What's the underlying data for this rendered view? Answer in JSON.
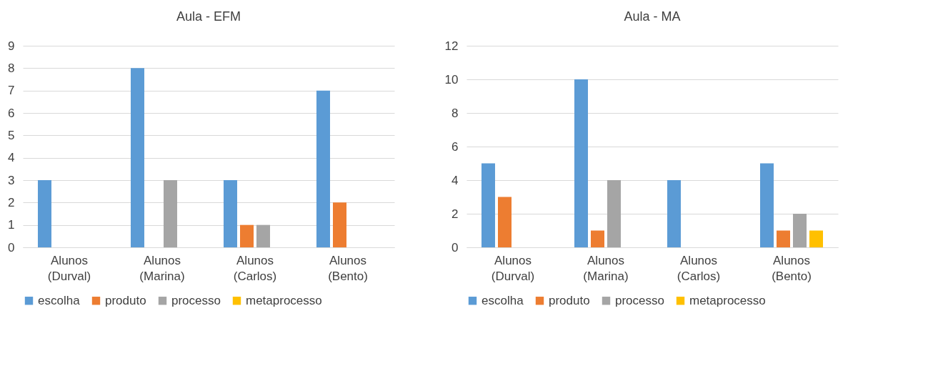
{
  "chart_data": [
    {
      "type": "bar",
      "title": "Aula - EFM",
      "categories": [
        "Alunos (Durval)",
        "Alunos (Marina)",
        "Alunos (Carlos)",
        "Alunos (Bento)"
      ],
      "series": [
        {
          "name": "escolha",
          "color": "#5b9bd5",
          "values": [
            3,
            8,
            3,
            7
          ]
        },
        {
          "name": "produto",
          "color": "#ed7d31",
          "values": [
            0,
            0,
            1,
            2
          ]
        },
        {
          "name": "processo",
          "color": "#a5a5a5",
          "values": [
            0,
            3,
            1,
            0
          ]
        },
        {
          "name": "metaprocesso",
          "color": "#ffc000",
          "values": [
            0,
            0,
            0,
            0
          ]
        }
      ],
      "ylim": [
        0,
        9
      ],
      "yticks": [
        0,
        1,
        2,
        3,
        4,
        5,
        6,
        7,
        8,
        9
      ],
      "grid": "y",
      "legend": "bottom"
    },
    {
      "type": "bar",
      "title": "Aula - MA",
      "categories": [
        "Alunos (Durval)",
        "Alunos (Marina)",
        "Alunos (Carlos)",
        "Alunos (Bento)"
      ],
      "series": [
        {
          "name": "escolha",
          "color": "#5b9bd5",
          "values": [
            5,
            10,
            4,
            5
          ]
        },
        {
          "name": "produto",
          "color": "#ed7d31",
          "values": [
            3,
            1,
            0,
            1
          ]
        },
        {
          "name": "processo",
          "color": "#a5a5a5",
          "values": [
            0,
            4,
            0,
            2
          ]
        },
        {
          "name": "metaprocesso",
          "color": "#ffc000",
          "values": [
            0,
            0,
            0,
            1
          ]
        }
      ],
      "ylim": [
        0,
        12
      ],
      "yticks": [
        0,
        2,
        4,
        6,
        8,
        10,
        12
      ],
      "grid": "y",
      "legend": "bottom"
    }
  ]
}
